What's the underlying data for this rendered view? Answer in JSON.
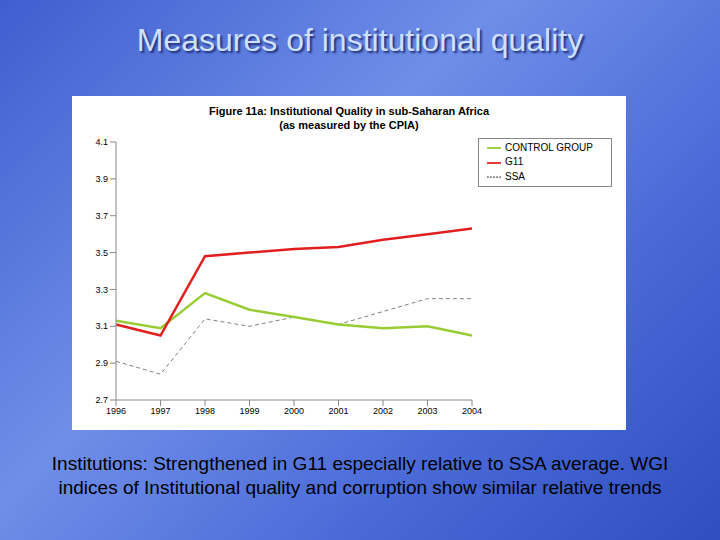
{
  "title": "Measures of institutional quality",
  "caption": "Institutions: Strengthened in G11 especially relative to SSA average. WGI indices of Institutional quality and corruption show similar relative trends",
  "chart_data": {
    "type": "line",
    "title": "Figure 11a: Institutional Quality in sub-Saharan Africa",
    "subtitle": "(as measured by the CPIA)",
    "categories": [
      "1996",
      "1997",
      "1998",
      "1999",
      "2000",
      "2001",
      "2002",
      "2003",
      "2004"
    ],
    "series": [
      {
        "name": "SSA",
        "color": "#808080",
        "line_style": "dashed",
        "marker": "none",
        "values": [
          2.91,
          2.84,
          3.14,
          3.1,
          3.15,
          3.11,
          3.18,
          3.25,
          3.25
        ]
      },
      {
        "name": "CONTROL GROUP",
        "color": "#99cc33",
        "line_style": "solid",
        "marker": "none",
        "values": [
          3.13,
          3.09,
          3.28,
          3.19,
          3.15,
          3.11,
          3.09,
          3.1,
          3.05
        ]
      },
      {
        "name": "G11",
        "color": "#e02020",
        "line_style": "solid",
        "marker": "none",
        "values": [
          3.11,
          3.05,
          3.48,
          3.5,
          3.52,
          3.53,
          3.57,
          3.6,
          3.63
        ]
      }
    ],
    "ylim": [
      2.7,
      4.1
    ],
    "yticks": [
      2.7,
      2.9,
      3.1,
      3.3,
      3.5,
      3.7,
      3.9,
      4.1
    ],
    "grid": false,
    "legend": "upper right"
  }
}
